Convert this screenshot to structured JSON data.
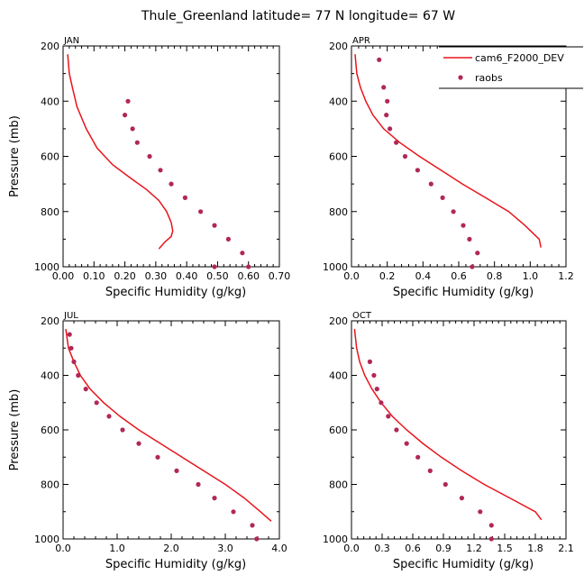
{
  "title": "Thule_Greenland  latitude= 77 N longitude= 67 W",
  "colors": {
    "model": "#e8141c",
    "obs": "#b02858"
  },
  "legend": {
    "model_label": "cam6_F2000_DEV",
    "obs_label": "raobs",
    "placement": "top-right of APR panel"
  },
  "chart_data": [
    {
      "type": "line",
      "panel": "JAN",
      "xlabel": "Specific Humidity (g/kg)",
      "ylabel": "Pressure (mb)",
      "xlim": [
        0,
        0.7
      ],
      "ylim": [
        1000,
        200
      ],
      "xticks": [
        "0.00",
        "0.10",
        "0.20",
        "0.30",
        "0.40",
        "0.50",
        "0.60",
        "0.70"
      ],
      "yticks": [
        "200",
        "400",
        "600",
        "800",
        "1000"
      ],
      "model": {
        "x": [
          0.015,
          0.02,
          0.03,
          0.045,
          0.075,
          0.11,
          0.16,
          0.22,
          0.27,
          0.31,
          0.335,
          0.35,
          0.355,
          0.35,
          0.33,
          0.31
        ],
        "y": [
          230,
          300,
          350,
          420,
          500,
          570,
          630,
          680,
          720,
          760,
          800,
          840,
          870,
          890,
          910,
          935
        ]
      },
      "obs": {
        "x": [
          0.21,
          0.2,
          0.225,
          0.24,
          0.28,
          0.315,
          0.35,
          0.395,
          0.445,
          0.49,
          0.535,
          0.58,
          0.6,
          0.49
        ],
        "y": [
          400,
          450,
          500,
          550,
          600,
          650,
          700,
          750,
          800,
          850,
          900,
          950,
          1000,
          1000
        ]
      }
    },
    {
      "type": "line",
      "panel": "APR",
      "xlabel": "Specific Humidity (g/kg)",
      "ylabel": "",
      "xlim": [
        0,
        1.2
      ],
      "ylim": [
        1000,
        200
      ],
      "xticks": [
        "0.0",
        "0.2",
        "0.4",
        "0.6",
        "0.8",
        "1.0",
        "1.2"
      ],
      "yticks": [
        "200",
        "400",
        "600",
        "800",
        "1000"
      ],
      "model": {
        "x": [
          0.02,
          0.03,
          0.05,
          0.08,
          0.12,
          0.18,
          0.27,
          0.38,
          0.5,
          0.62,
          0.75,
          0.88,
          0.97,
          1.05,
          1.06
        ],
        "y": [
          230,
          300,
          350,
          400,
          450,
          500,
          550,
          600,
          650,
          700,
          750,
          800,
          850,
          900,
          930
        ]
      },
      "obs": {
        "x": [
          0.155,
          0.18,
          0.2,
          0.195,
          0.215,
          0.25,
          0.3,
          0.37,
          0.445,
          0.51,
          0.57,
          0.625,
          0.66,
          0.705,
          0.675
        ],
        "y": [
          250,
          350,
          400,
          450,
          500,
          550,
          600,
          650,
          700,
          750,
          800,
          850,
          900,
          950,
          1000
        ]
      }
    },
    {
      "type": "line",
      "panel": "JUL",
      "xlabel": "Specific Humidity (g/kg)",
      "ylabel": "Pressure (mb)",
      "xlim": [
        0,
        4.0
      ],
      "ylim": [
        1000,
        200
      ],
      "xticks": [
        "0.0",
        "1.0",
        "2.0",
        "3.0",
        "4.0"
      ],
      "yticks": [
        "200",
        "400",
        "600",
        "800",
        "1000"
      ],
      "model": {
        "x": [
          0.05,
          0.1,
          0.2,
          0.32,
          0.5,
          0.75,
          1.05,
          1.4,
          1.8,
          2.2,
          2.6,
          3.0,
          3.35,
          3.65,
          3.85
        ],
        "y": [
          230,
          300,
          350,
          400,
          450,
          500,
          550,
          600,
          650,
          700,
          750,
          800,
          850,
          900,
          935
        ]
      },
      "obs": {
        "x": [
          0.12,
          0.15,
          0.2,
          0.28,
          0.42,
          0.62,
          0.85,
          1.1,
          1.4,
          1.75,
          2.1,
          2.5,
          2.8,
          3.15,
          3.5,
          3.58
        ],
        "y": [
          250,
          300,
          350,
          400,
          450,
          500,
          550,
          600,
          650,
          700,
          750,
          800,
          850,
          900,
          950,
          1000
        ]
      }
    },
    {
      "type": "line",
      "panel": "OCT",
      "xlabel": "Specific Humidity (g/kg)",
      "ylabel": "",
      "xlim": [
        0,
        2.1
      ],
      "ylim": [
        1000,
        200
      ],
      "xticks": [
        "0.0",
        "0.3",
        "0.6",
        "0.9",
        "1.2",
        "1.5",
        "1.8",
        "2.1"
      ],
      "yticks": [
        "200",
        "400",
        "600",
        "800",
        "1000"
      ],
      "model": {
        "x": [
          0.03,
          0.05,
          0.08,
          0.13,
          0.2,
          0.29,
          0.4,
          0.54,
          0.7,
          0.88,
          1.08,
          1.3,
          1.55,
          1.8,
          1.86
        ],
        "y": [
          230,
          300,
          350,
          400,
          450,
          500,
          550,
          600,
          650,
          700,
          750,
          800,
          850,
          900,
          930
        ]
      },
      "obs": {
        "x": [
          0.18,
          0.22,
          0.25,
          0.29,
          0.36,
          0.44,
          0.54,
          0.65,
          0.77,
          0.92,
          1.08,
          1.26,
          1.37,
          1.37
        ],
        "y": [
          350,
          400,
          450,
          500,
          550,
          600,
          650,
          700,
          750,
          800,
          850,
          900,
          950,
          1000
        ]
      }
    }
  ]
}
